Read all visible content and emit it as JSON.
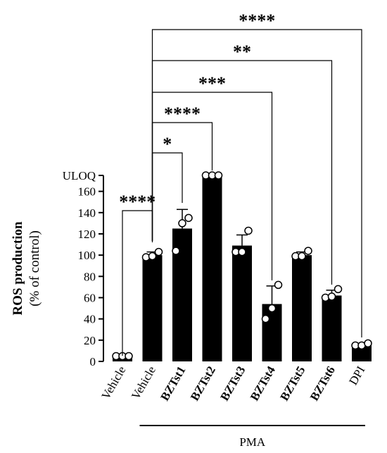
{
  "chart_data": {
    "type": "bar",
    "ylabel": "ROS production",
    "ylabel_sub": "(% of control)",
    "y_ticks": [
      "0",
      "20",
      "40",
      "60",
      "80",
      "100",
      "120",
      "140",
      "160"
    ],
    "y_top_label": "ULOQ",
    "ylim": [
      0,
      175
    ],
    "categories": [
      "Vehicle",
      "Vehicle",
      "BZTst1",
      "BZTst2",
      "BZTst3",
      "BZTst4",
      "BZTst5",
      "BZTst6",
      "DPI"
    ],
    "category_bold": [
      false,
      false,
      true,
      true,
      true,
      true,
      true,
      true,
      false
    ],
    "values": [
      5,
      100,
      125,
      175,
      109,
      54,
      100,
      62,
      15
    ],
    "errors": [
      0,
      3,
      18,
      0,
      10,
      17,
      3,
      5,
      2
    ],
    "points": [
      [
        5,
        5,
        5
      ],
      [
        98,
        99,
        103
      ],
      [
        104,
        130,
        135
      ],
      [
        175,
        175,
        175
      ],
      [
        103,
        103,
        123
      ],
      [
        40,
        50,
        72
      ],
      [
        99,
        99,
        104
      ],
      [
        60,
        61,
        68
      ],
      [
        15,
        15,
        17
      ]
    ],
    "group_label": "PMA",
    "comparisons": [
      {
        "from": "Vehicle",
        "to": "PMA Vehicle",
        "stars": "****"
      },
      {
        "from": "PMA Vehicle",
        "to": "BZTst1",
        "stars": "*"
      },
      {
        "from": "PMA Vehicle",
        "to": "BZTst2",
        "stars": "****"
      },
      {
        "from": "PMA Vehicle",
        "to": "BZTst4",
        "stars": "***"
      },
      {
        "from": "PMA Vehicle",
        "to": "BZTst6",
        "stars": "**"
      },
      {
        "from": "PMA Vehicle",
        "to": "DPI",
        "stars": "****"
      }
    ]
  }
}
